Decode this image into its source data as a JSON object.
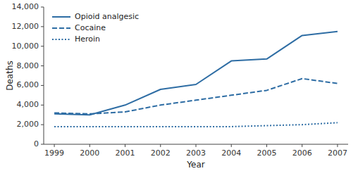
{
  "chart_data": {
    "type": "line",
    "x": [
      1999,
      2000,
      2001,
      2002,
      2003,
      2004,
      2005,
      2006,
      2007
    ],
    "series": [
      {
        "name": "Opioid analgesic",
        "color": "#2e6da4",
        "line_style": "solid",
        "values": [
          3100,
          3000,
          4000,
          5600,
          6100,
          8500,
          8700,
          11100,
          11500
        ]
      },
      {
        "name": "Cocaine",
        "color": "#2e6da4",
        "line_style": "dashed",
        "values": [
          3200,
          3100,
          3300,
          4000,
          4500,
          5000,
          5500,
          6700,
          6200
        ]
      },
      {
        "name": "Heroin",
        "color": "#2e6da4",
        "line_style": "dotted",
        "values": [
          1800,
          1800,
          1800,
          1800,
          1800,
          1800,
          1900,
          2000,
          2200
        ]
      }
    ],
    "xlabel": "Year",
    "ylabel": "Deaths",
    "xlim": [
      1998.7,
      2007.3
    ],
    "xticks": [
      1999,
      2000,
      2001,
      2002,
      2003,
      2004,
      2005,
      2006,
      2007
    ],
    "ylim": [
      0,
      14000
    ],
    "yticks": [
      0,
      {
        "value": 2000,
        "label": "2,000"
      },
      {
        "value": 4000,
        "label": "4,000"
      },
      {
        "value": 6000,
        "label": "6,000"
      },
      {
        "value": 8000,
        "label": "8,000"
      },
      {
        "value": 10000,
        "label": "10,000"
      },
      {
        "value": 12000,
        "label": "12,000"
      },
      {
        "value": 14000,
        "label": "14,000"
      }
    ],
    "legend": "upper left",
    "grid": false
  }
}
